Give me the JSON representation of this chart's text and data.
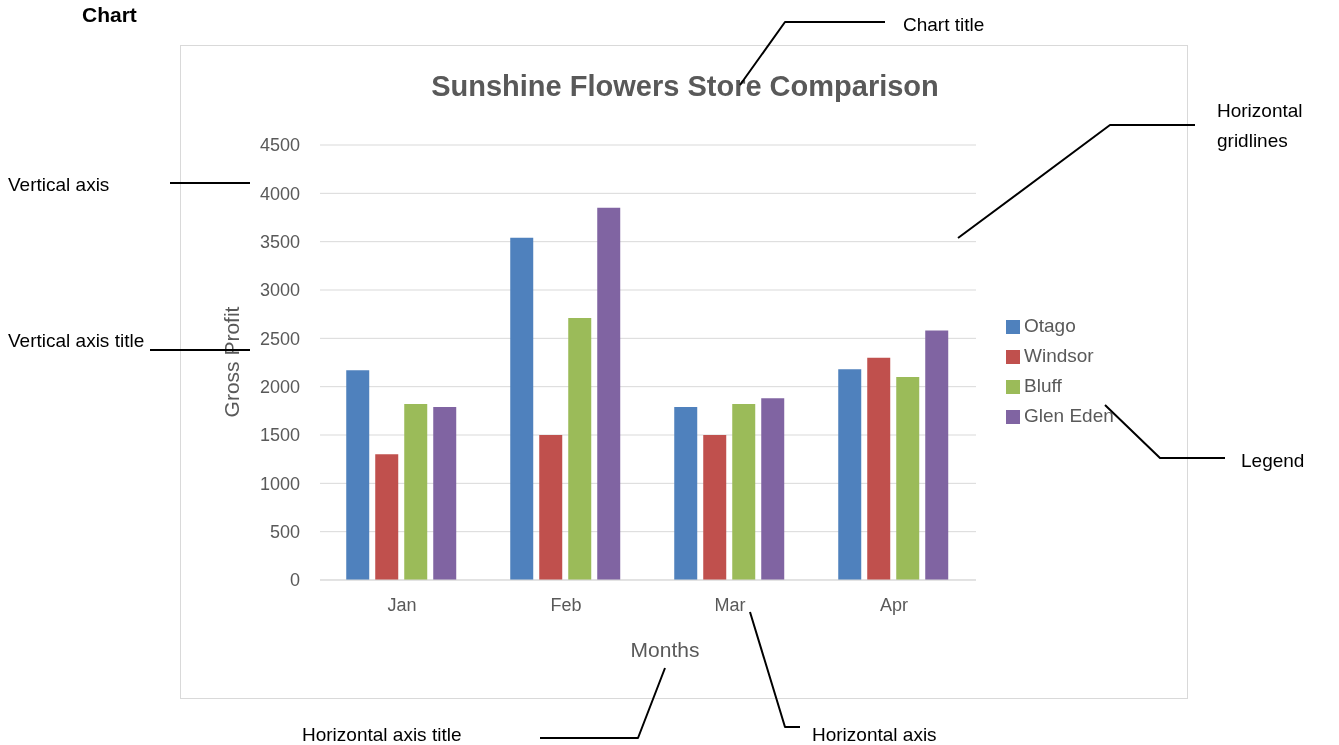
{
  "chart_data": {
    "type": "bar",
    "title": "Sunshine Flowers Store Comparison",
    "xlabel": "Months",
    "ylabel": "Gross Profit",
    "categories": [
      "Jan",
      "Feb",
      "Mar",
      "Apr"
    ],
    "series": [
      {
        "name": "Otago",
        "color": "#4f81bd",
        "values": [
          2170,
          3540,
          1790,
          2180
        ]
      },
      {
        "name": "Windsor",
        "color": "#c0504d",
        "values": [
          1300,
          1500,
          1500,
          2300
        ]
      },
      {
        "name": "Bluff",
        "color": "#9bbb59",
        "values": [
          1820,
          2710,
          1820,
          2100
        ]
      },
      {
        "name": "Glen Eden",
        "color": "#8064a2",
        "values": [
          1790,
          3850,
          1880,
          2580
        ]
      }
    ],
    "ylim": [
      0,
      4500
    ],
    "yticks": [
      0,
      500,
      1000,
      1500,
      2000,
      2500,
      3000,
      3500,
      4000,
      4500
    ],
    "grid": "y",
    "legend": "right",
    "annotations": [
      "Chart",
      "Chart title",
      "Vertical axis",
      "Horizontal gridlines",
      "Vertical axis title",
      "Legend",
      "Horizontal axis title",
      "Horizontal axis"
    ]
  }
}
